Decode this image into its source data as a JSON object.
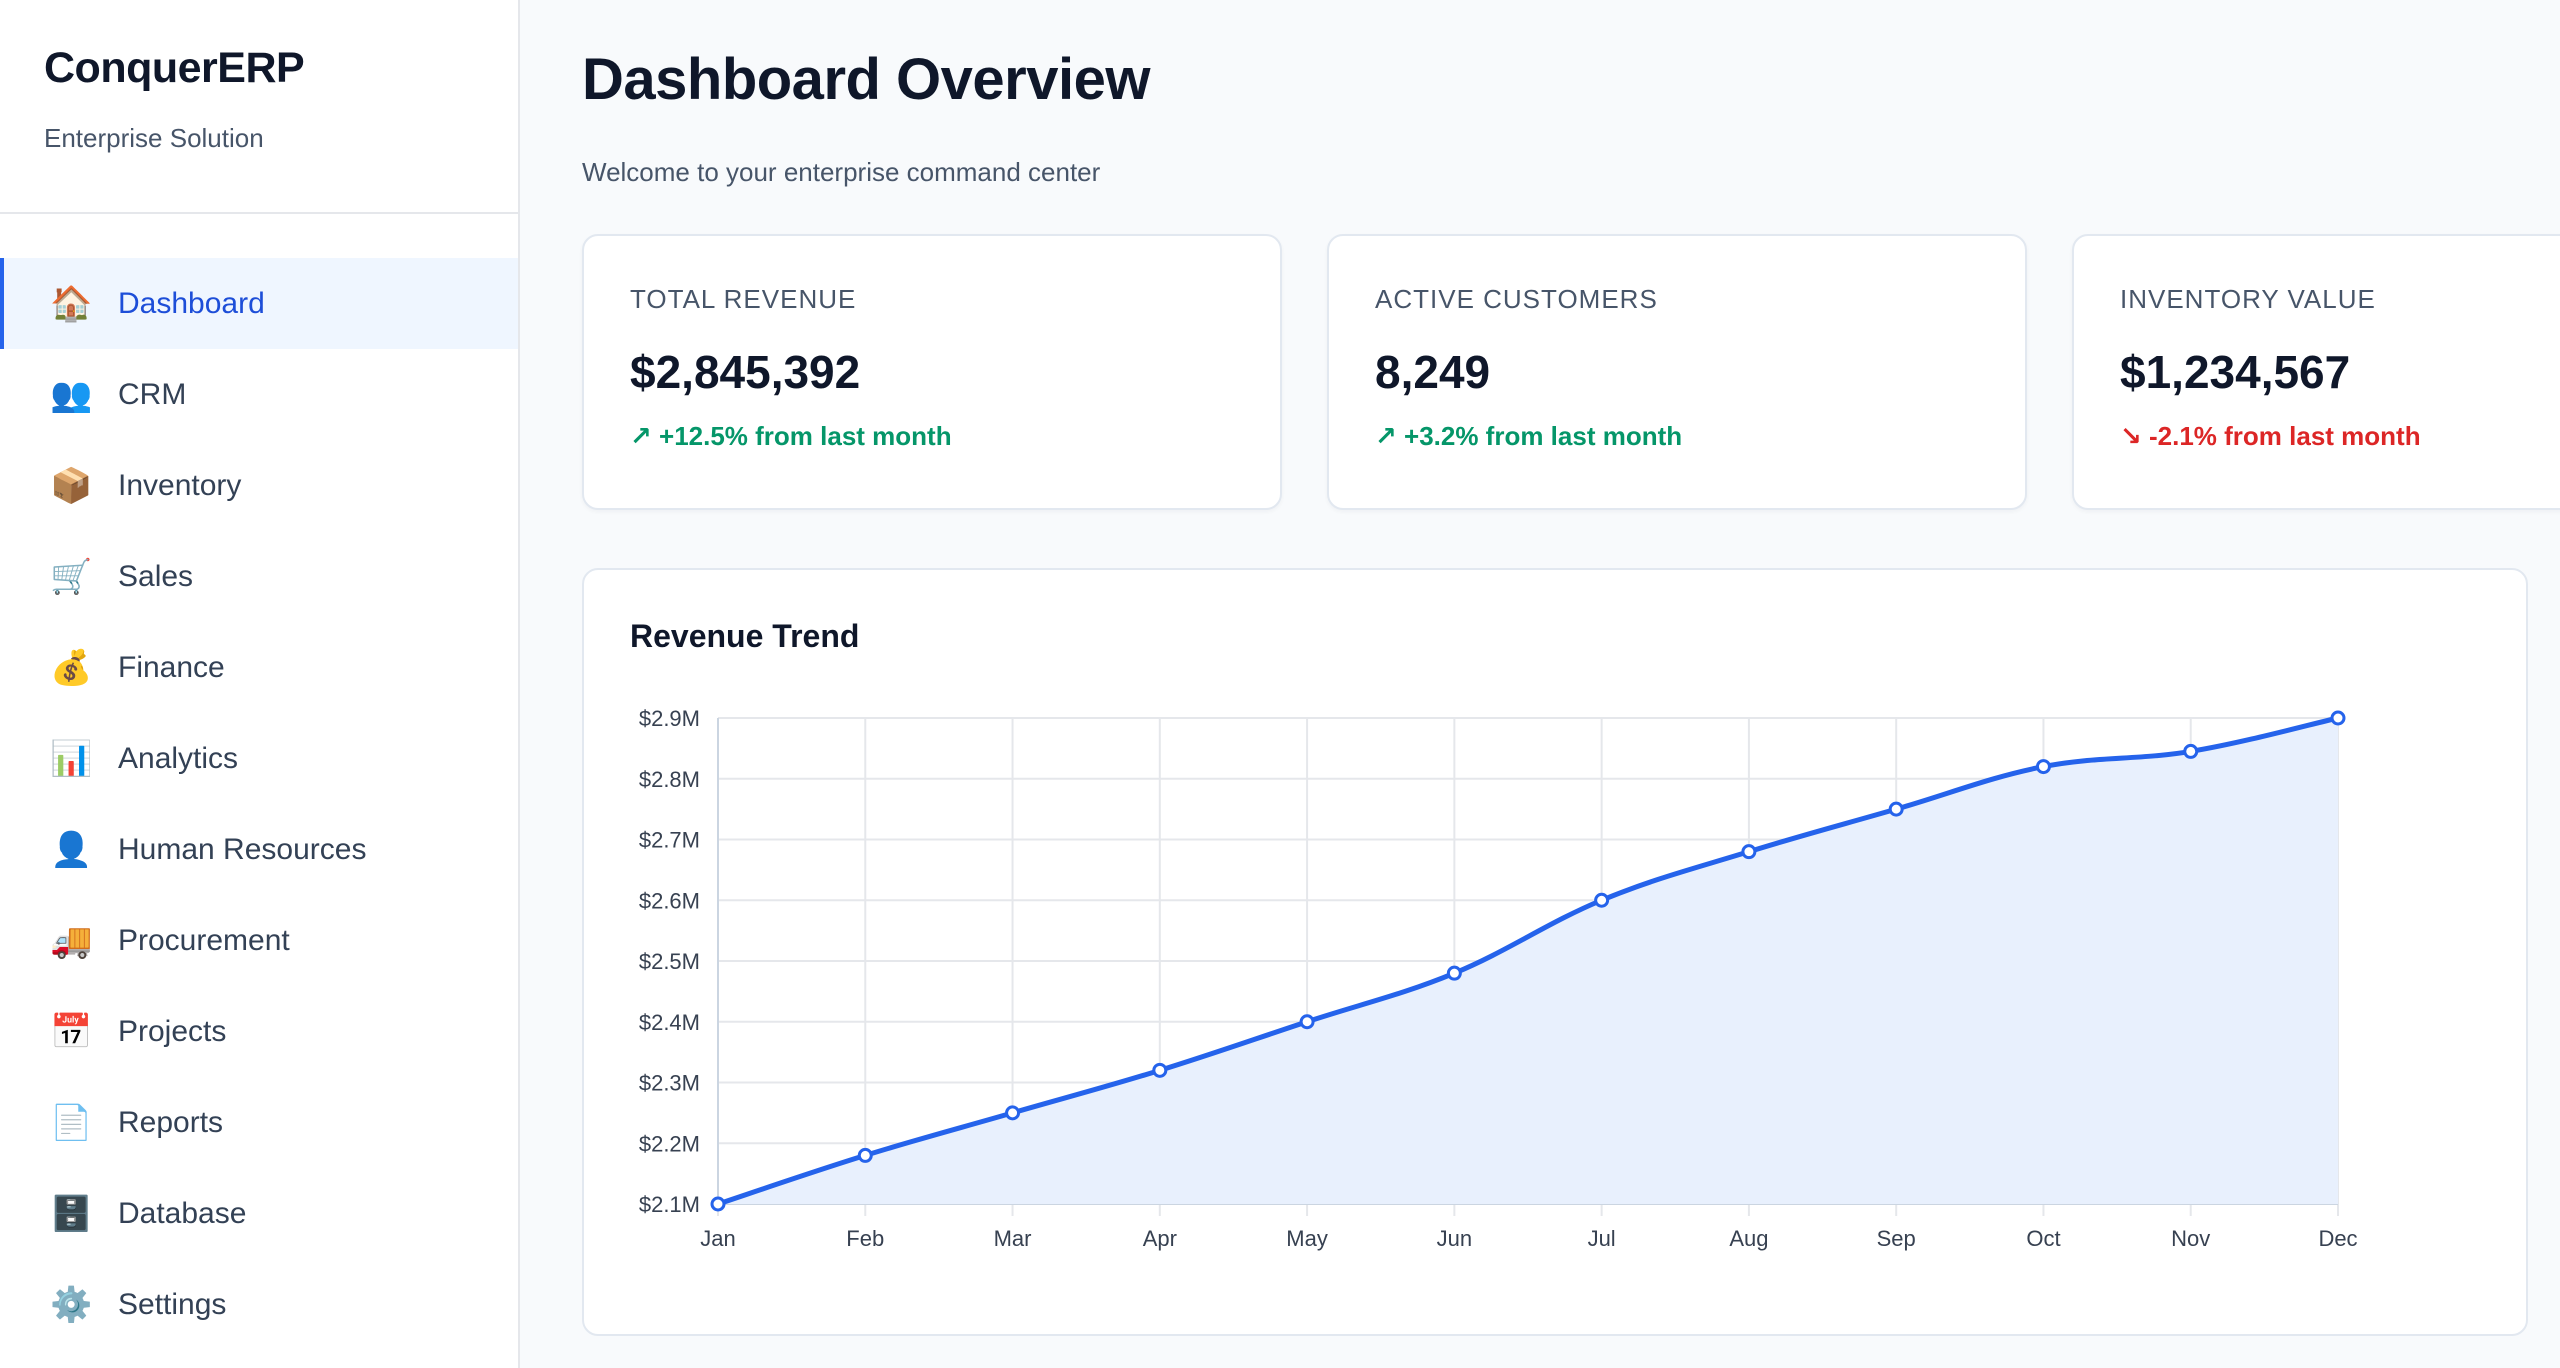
{
  "brand": {
    "title": "ConquerERP",
    "subtitle": "Enterprise Solution"
  },
  "sidebar": {
    "items": [
      {
        "label": "Dashboard",
        "icon": "🏠",
        "icon_name": "house-icon",
        "active": true
      },
      {
        "label": "CRM",
        "icon": "👥",
        "icon_name": "people-icon"
      },
      {
        "label": "Inventory",
        "icon": "📦",
        "icon_name": "package-icon"
      },
      {
        "label": "Sales",
        "icon": "🛒",
        "icon_name": "cart-icon"
      },
      {
        "label": "Finance",
        "icon": "💰",
        "icon_name": "money-bag-icon"
      },
      {
        "label": "Analytics",
        "icon": "📊",
        "icon_name": "bar-chart-icon"
      },
      {
        "label": "Human Resources",
        "icon": "👤",
        "icon_name": "person-icon"
      },
      {
        "label": "Procurement",
        "icon": "🚚",
        "icon_name": "truck-icon"
      },
      {
        "label": "Projects",
        "icon": "📅",
        "icon_name": "calendar-icon"
      },
      {
        "label": "Reports",
        "icon": "📄",
        "icon_name": "document-icon"
      },
      {
        "label": "Database",
        "icon": "🗄️",
        "icon_name": "file-cabinet-icon"
      },
      {
        "label": "Settings",
        "icon": "⚙️",
        "icon_name": "gear-icon"
      }
    ]
  },
  "header": {
    "title": "Dashboard Overview",
    "subtitle": "Welcome to your enterprise command center"
  },
  "cards": [
    {
      "label": "TOTAL REVENUE",
      "value": "$2,845,392",
      "trend": "↗ +12.5% from last month",
      "direction": "up"
    },
    {
      "label": "ACTIVE CUSTOMERS",
      "value": "8,249",
      "trend": "↗ +3.2% from last month",
      "direction": "up"
    },
    {
      "label": "INVENTORY VALUE",
      "value": "$1,234,567",
      "trend": "↘ -2.1% from last month",
      "direction": "down"
    }
  ],
  "colors": {
    "accent": "#2563eb",
    "up": "#059669",
    "down": "#dc2626"
  },
  "chart_data": {
    "type": "line",
    "title": "Revenue Trend",
    "x": [
      "Jan",
      "Feb",
      "Mar",
      "Apr",
      "May",
      "Jun",
      "Jul",
      "Aug",
      "Sep",
      "Oct",
      "Nov",
      "Dec"
    ],
    "values": [
      2.1,
      2.18,
      2.25,
      2.32,
      2.4,
      2.48,
      2.6,
      2.68,
      2.75,
      2.82,
      2.845,
      2.9
    ],
    "ylim": [
      2.1,
      2.9
    ],
    "yticks": [
      2.9,
      2.8,
      2.7,
      2.6,
      2.5,
      2.4,
      2.3,
      2.2,
      2.1
    ],
    "ytick_labels": [
      "$2.9M",
      "$2.8M",
      "$2.7M",
      "$2.6M",
      "$2.5M",
      "$2.4M",
      "$2.3M",
      "$2.2M",
      "$2.1M"
    ],
    "grid": true,
    "fill": true,
    "line_color": "#2563eb",
    "fill_color": "#e8f0fd"
  }
}
